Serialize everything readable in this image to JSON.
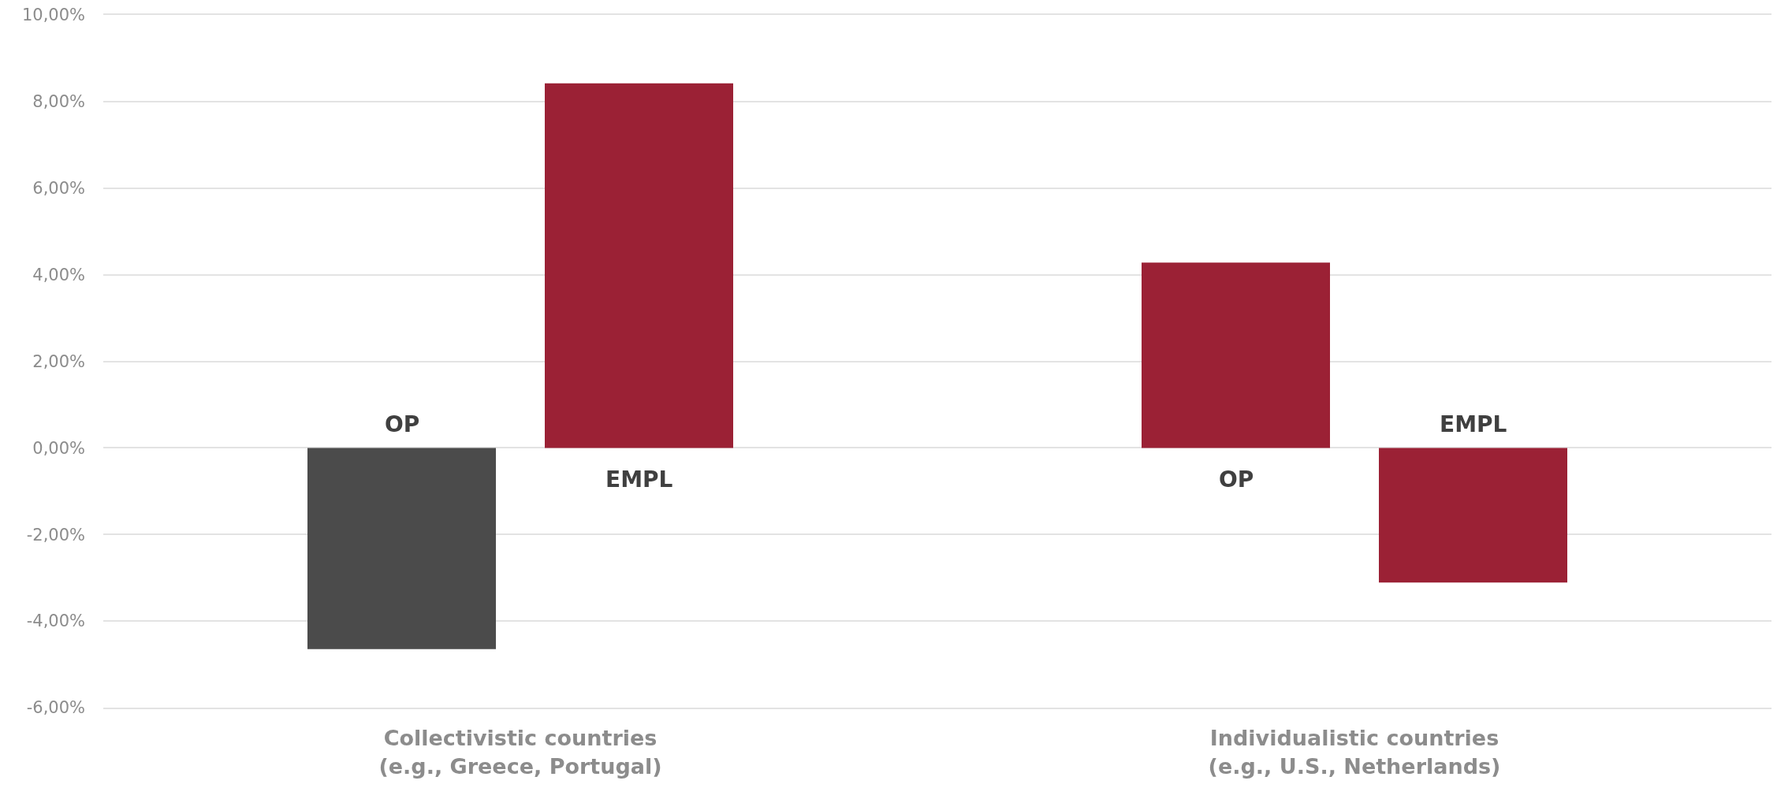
{
  "chart_data": {
    "type": "bar",
    "categories": [
      "Collectivistic countries\n(e.g., Greece, Portugal)",
      "Individualistic countries\n(e.g., U.S., Netherlands)"
    ],
    "series": [
      {
        "name": "OP",
        "colors": [
          "#4b4b4b",
          "#9b2135"
        ],
        "values": [
          -4.65,
          4.28
        ]
      },
      {
        "name": "EMPL",
        "color": "#9b2135",
        "values": [
          8.42,
          -3.11
        ]
      }
    ],
    "ylim": [
      -6,
      10
    ],
    "yticks": [
      {
        "value": -6,
        "label": "-6,00%"
      },
      {
        "value": -4,
        "label": "-4,00%"
      },
      {
        "value": -2,
        "label": "-2,00%"
      },
      {
        "value": 0,
        "label": "0,00%"
      },
      {
        "value": 2,
        "label": "2,00%"
      },
      {
        "value": 4,
        "label": "4,00%"
      },
      {
        "value": 6,
        "label": "6,00%"
      },
      {
        "value": 8,
        "label": "8,00%"
      },
      {
        "value": 10,
        "label": "10,00%"
      }
    ],
    "grid": "y",
    "legend": false
  }
}
